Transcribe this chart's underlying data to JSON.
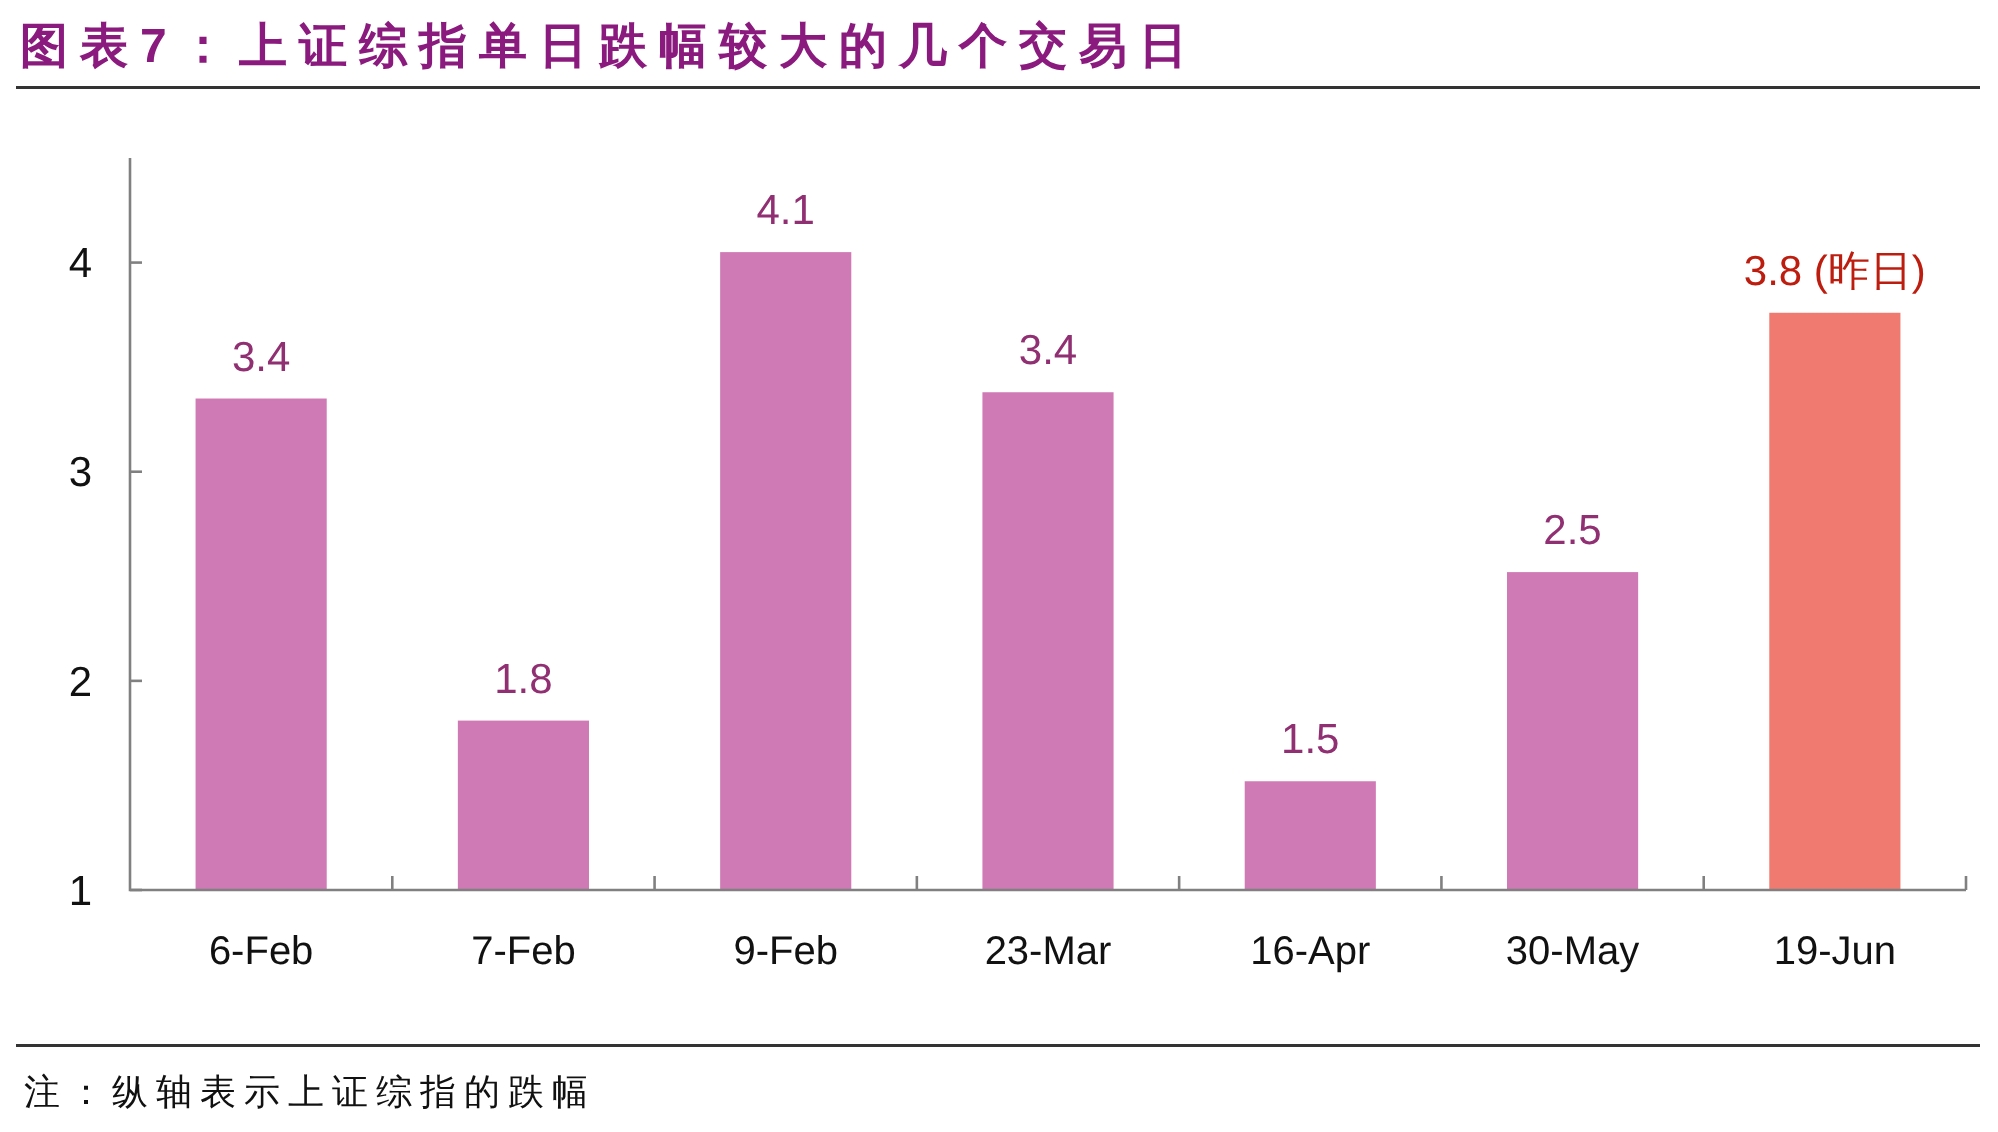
{
  "chart_data": {
    "type": "bar",
    "title": "图表7：上证综指单日跌幅较大的几个交易日",
    "categories": [
      "6-Feb",
      "7-Feb",
      "9-Feb",
      "23-Mar",
      "16-Apr",
      "30-May",
      "19-Jun"
    ],
    "values": [
      3.35,
      1.81,
      4.05,
      3.38,
      1.52,
      2.52,
      3.76
    ],
    "colors": [
      "#d07ab5",
      "#d07ab5",
      "#d07ab5",
      "#d07ab5",
      "#d07ab5",
      "#d07ab5",
      "#f07a70"
    ],
    "value_labels": [
      "3.4",
      "1.8",
      "4.1",
      "3.4",
      "1.5",
      "2.5",
      "3.8 (昨日)"
    ],
    "ylim": [
      1,
      4.5
    ],
    "yticks": [
      1,
      2,
      3,
      4
    ],
    "annotations": [
      "注：纵轴表示上证综指的跌幅"
    ]
  }
}
